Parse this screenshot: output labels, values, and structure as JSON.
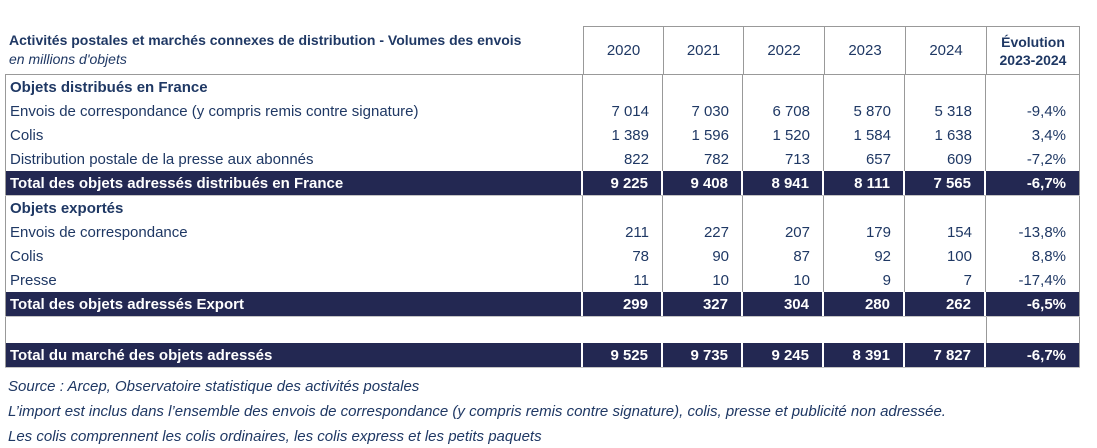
{
  "colors": {
    "text_navy": "#1f3864",
    "total_row_background": "#232852",
    "grid_border": "#999999",
    "total_row_text": "#ffffff"
  },
  "table": {
    "header": {
      "title": "Activités postales et marchés connexes de distribution  - Volumes des envois",
      "subtitle": "en millions d'objets",
      "years": [
        "2020",
        "2021",
        "2022",
        "2023",
        "2024"
      ],
      "evolution_line1": "Évolution",
      "evolution_line2": "2023-2024"
    },
    "rows": [
      {
        "type": "section",
        "label": "Objets distribués en France"
      },
      {
        "type": "data",
        "label": "Envois de correspondance (y compris remis contre signature)",
        "values": [
          "7 014",
          "7 030",
          "6 708",
          "5 870",
          "5 318"
        ],
        "evolution": "-9,4%"
      },
      {
        "type": "data",
        "label": "Colis",
        "values": [
          "1 389",
          "1 596",
          "1 520",
          "1 584",
          "1 638"
        ],
        "evolution": "3,4%"
      },
      {
        "type": "data",
        "label": "Distribution postale de la presse aux abonnés",
        "values": [
          "822",
          "782",
          "713",
          "657",
          "609"
        ],
        "evolution": "-7,2%"
      },
      {
        "type": "total",
        "label": "Total des objets adressés distribués en France",
        "values": [
          "9 225",
          "9 408",
          "8 941",
          "8 111",
          "7 565"
        ],
        "evolution": "-6,7%"
      },
      {
        "type": "section",
        "label": "Objets exportés"
      },
      {
        "type": "data",
        "label": "Envois de correspondance",
        "values": [
          "211",
          "227",
          "207",
          "179",
          "154"
        ],
        "evolution": "-13,8%"
      },
      {
        "type": "data",
        "label": "Colis",
        "values": [
          "78",
          "90",
          "87",
          "92",
          "100"
        ],
        "evolution": "8,8%"
      },
      {
        "type": "data",
        "label": "Presse",
        "values": [
          "11",
          "10",
          "10",
          "9",
          "7"
        ],
        "evolution": "-17,4%"
      },
      {
        "type": "total",
        "label": "Total des objets adressés Export",
        "values": [
          "299",
          "327",
          "304",
          "280",
          "262"
        ],
        "evolution": "-6,5%"
      },
      {
        "type": "spacer",
        "label": ""
      },
      {
        "type": "total",
        "label": "Total du marché des objets adressés",
        "values": [
          "9 525",
          "9 735",
          "9 245",
          "8 391",
          "7 827"
        ],
        "evolution": "-6,7%"
      }
    ]
  },
  "footnotes": [
    "Source : Arcep, Observatoire statistique des activités postales",
    "L’import est inclus dans l’ensemble des envois de correspondance (y compris remis contre signature), colis, presse et publicité non adressée.",
    "Les colis comprennent les colis ordinaires, les colis express et les petits paquets"
  ]
}
